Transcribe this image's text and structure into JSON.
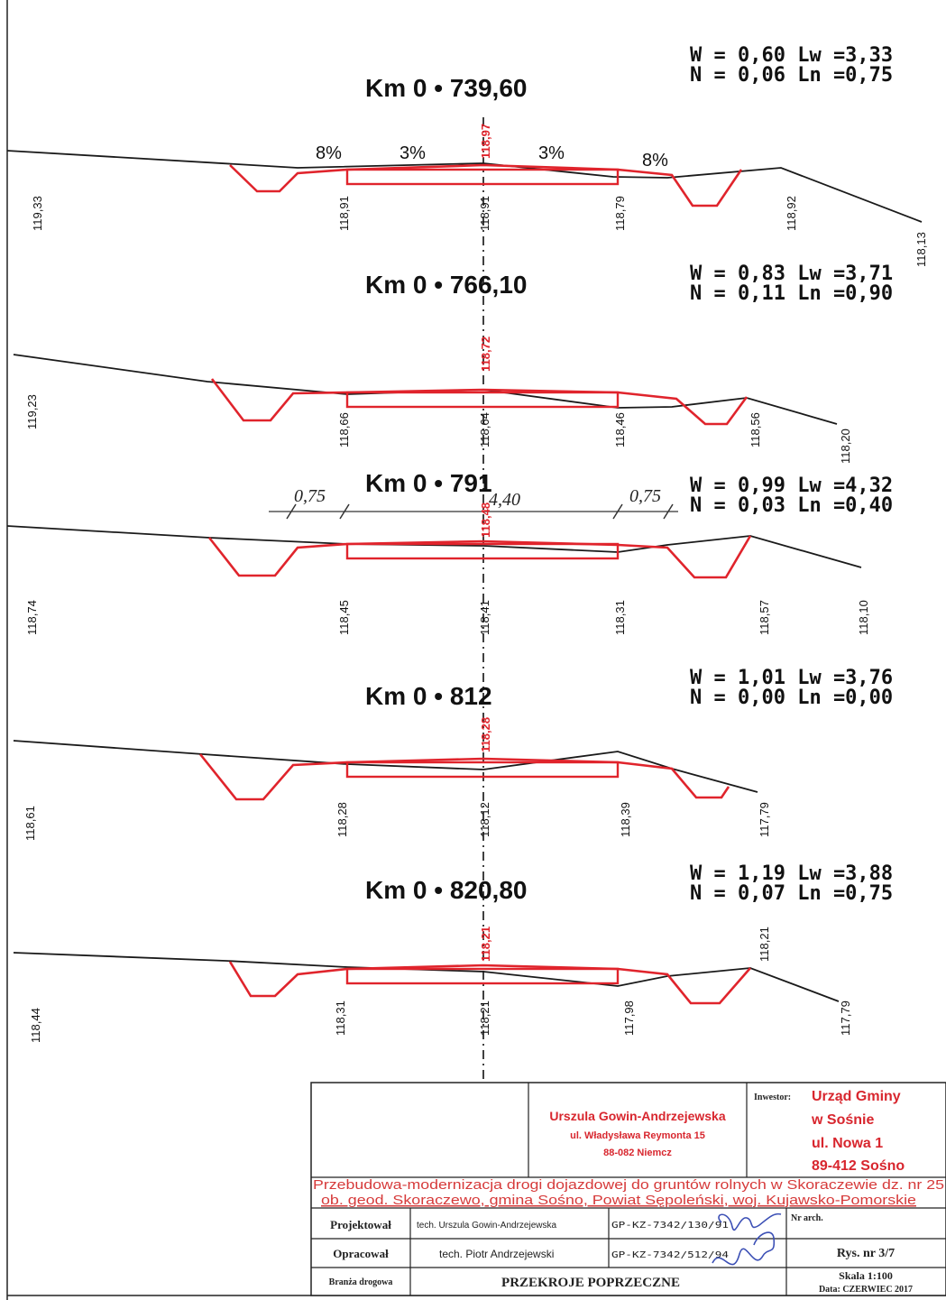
{
  "sections": [
    {
      "title": "Km  0 • 739,60",
      "w": "W  = 0,60 Lw =3,33",
      "n": "N  = 0,06   Ln =0,75",
      "axis": "118,97",
      "slopes": [
        "8%",
        "3%",
        "3%",
        "8%"
      ],
      "levels": [
        "119,33",
        "118,91",
        "118,91",
        "118,79",
        "118,92",
        "118,13"
      ]
    },
    {
      "title": "Km  0 • 766,10",
      "w": "W  = 0,83 Lw =3,71",
      "n": "N  = 0,11 Ln =0,90",
      "axis": "118,72",
      "levels": [
        "119,23",
        "118,66",
        "118,64",
        "118,46",
        "118,56",
        "118,20"
      ]
    },
    {
      "title": "Km  0 • 791",
      "w": "W  = 0,99 Lw =4,32",
      "n": "N  = 0,03   Ln =0,40",
      "axis": "118,48",
      "dims": [
        "0,75",
        "4,40",
        "0,75"
      ],
      "levels": [
        "118,74",
        "118,45",
        "118,41",
        "118,31",
        "118,57",
        "118,10"
      ]
    },
    {
      "title": "Km  0 • 812",
      "w": "W  = 1,01 Lw =3,76",
      "n": "N  = 0,00 Ln =0,00",
      "axis": "118,28",
      "levels": [
        "118,61",
        "118,28",
        "118,12",
        "118,39",
        "117,79"
      ]
    },
    {
      "title": "Km  0 • 820,80",
      "w": "W  = 1,19 Lw =3,88",
      "n": "N  = 0,07 Ln =0,75",
      "axis": "118,21",
      "levels": [
        "118,44",
        "118,31",
        "118,21",
        "117,98",
        "118,21",
        "117,79"
      ]
    }
  ],
  "title_block": {
    "designer_name": "Urszula Gowin-Andrzejewska",
    "designer_street": "ul. Władysława Reymonta 15",
    "designer_city": "88-082 Niemcz",
    "investor_label": "Inwestor:",
    "investor_name": "Urząd Gminy",
    "investor_place": "w Sośnie",
    "investor_street": "ul. Nowa 1",
    "investor_city": "89-412 Sośno",
    "project_line1": "Przebudowa-modernizacja drogi dojazdowej do gruntów rolnych w Skoraczewie dz. nr 25",
    "project_line2": "ob. geod. Skoraczewo, gmina Sośno, Powiat Sępoleński, woj. Kujawsko-Pomorskie",
    "row1_label": "Projektował",
    "row1_person": "tech. Urszula Gowin-Andrzejewska",
    "row1_licence": "GP-KZ-7342/130/91",
    "archive_label": "Nr arch.",
    "row2_label": "Opracował",
    "row2_person": "tech. Piotr Andrzejewski",
    "row2_licence": "GP-KZ-7342/512/94",
    "drawing_no": "Rys. nr 3/7",
    "branch_label": "Branża drogowa",
    "drawing_title": "PRZEKROJE POPRZECZNE",
    "scale": "Skala 1:100",
    "date": "Data: CZERWIEC 2017"
  },
  "colors": {
    "design": "#e0242c",
    "terrain": "#1a1a1a",
    "designer_text": "#d8262e",
    "investor_text": "#d8262e",
    "project_text": "#d63a3a",
    "signature": "#3b4fb5"
  }
}
